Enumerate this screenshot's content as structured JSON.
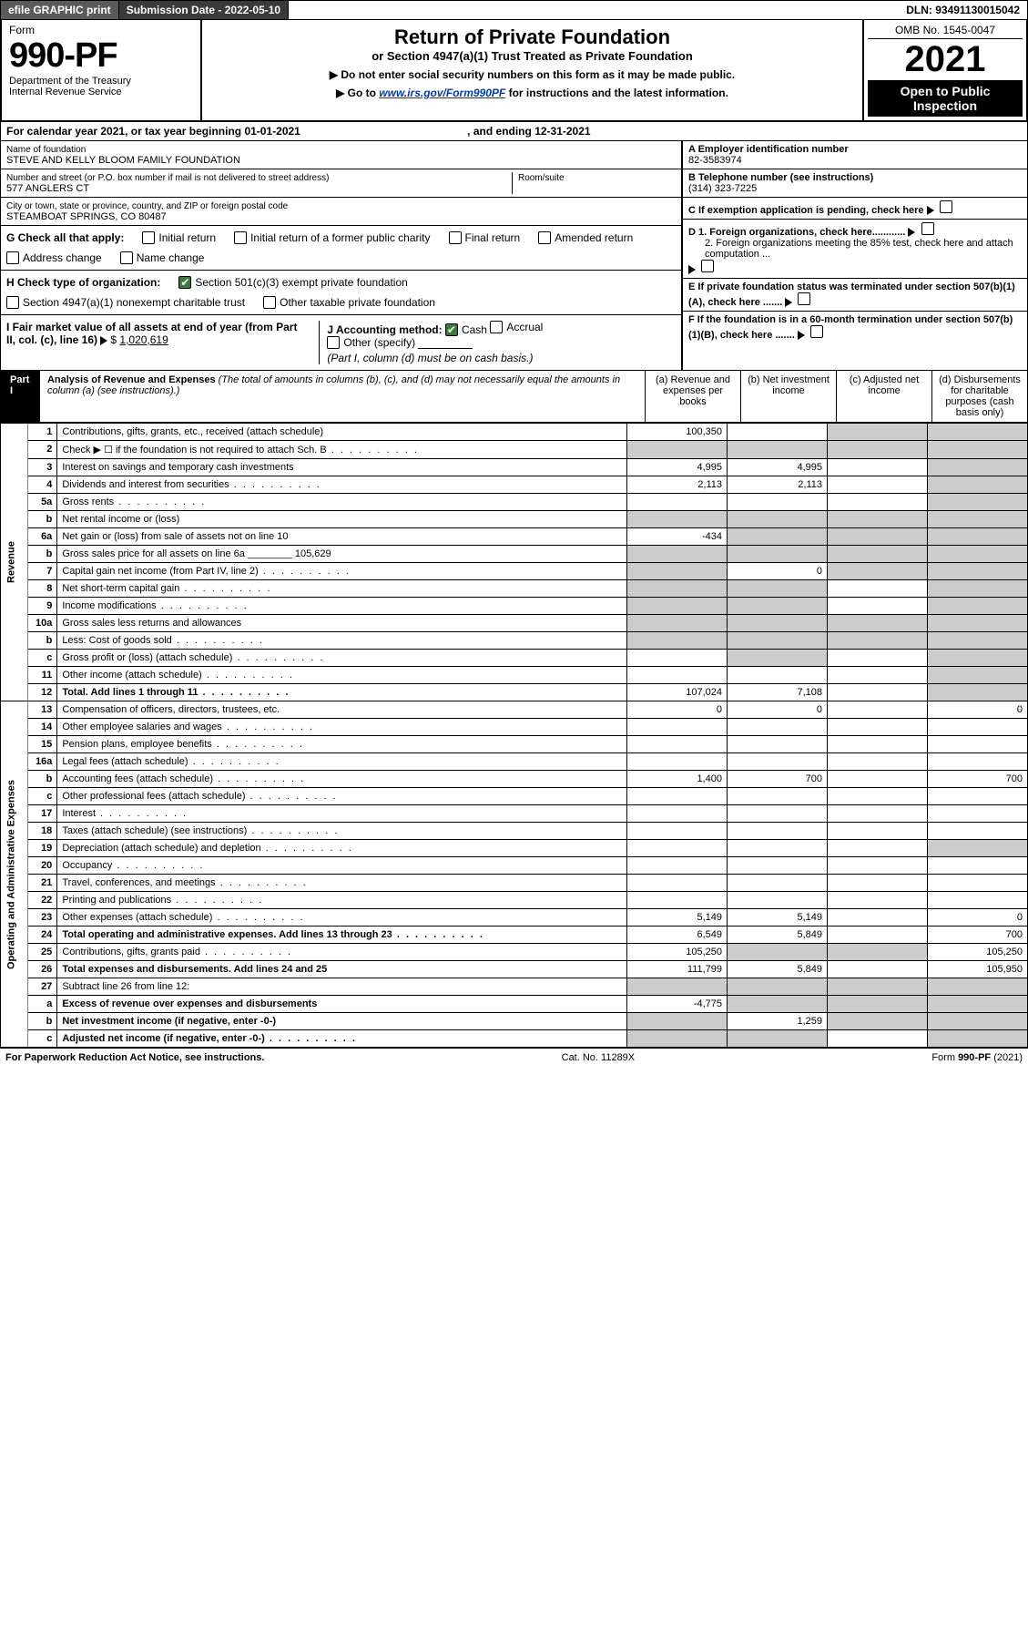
{
  "top": {
    "efile": "efile GRAPHIC print",
    "subdate_label": "Submission Date - ",
    "subdate": "2022-05-10",
    "dln_label": "DLN: ",
    "dln": "93491130015042"
  },
  "header": {
    "form_word": "Form",
    "form_num": "990-PF",
    "dept1": "Department of the Treasury",
    "dept2": "Internal Revenue Service",
    "title": "Return of Private Foundation",
    "subtitle": "or Section 4947(a)(1) Trust Treated as Private Foundation",
    "note1": "▶ Do not enter social security numbers on this form as it may be made public.",
    "note2_pre": "▶ Go to ",
    "note2_link": "www.irs.gov/Form990PF",
    "note2_post": " for instructions and the latest information.",
    "omb": "OMB No. 1545-0047",
    "year": "2021",
    "open": "Open to Public Inspection"
  },
  "cal": {
    "pre": "For calendar year 2021, or tax year beginning ",
    "begin": "01-01-2021",
    "mid": " , and ending ",
    "end": "12-31-2021"
  },
  "name": {
    "label": "Name of foundation",
    "value": "STEVE AND KELLY BLOOM FAMILY FOUNDATION"
  },
  "addr": {
    "label": "Number and street (or P.O. box number if mail is not delivered to street address)",
    "value": "577 ANGLERS CT",
    "room_label": "Room/suite"
  },
  "city": {
    "label": "City or town, state or province, country, and ZIP or foreign postal code",
    "value": "STEAMBOAT SPRINGS, CO  80487"
  },
  "ein": {
    "label": "A Employer identification number",
    "value": "82-3583974"
  },
  "tel": {
    "label": "B Telephone number (see instructions)",
    "value": "(314) 323-7225"
  },
  "C": "C If exemption application is pending, check here",
  "D1": "D 1. Foreign organizations, check here............",
  "D2": "2. Foreign organizations meeting the 85% test, check here and attach computation ...",
  "E": "E  If private foundation status was terminated under section 507(b)(1)(A), check here .......",
  "F": "F  If the foundation is in a 60-month termination under section 507(b)(1)(B), check here .......",
  "G": {
    "label": "G Check all that apply:",
    "opts": [
      "Initial return",
      "Initial return of a former public charity",
      "Final return",
      "Amended return",
      "Address change",
      "Name change"
    ]
  },
  "H": {
    "label": "H Check type of organization:",
    "o1": "Section 501(c)(3) exempt private foundation",
    "o2": "Section 4947(a)(1) nonexempt charitable trust",
    "o3": "Other taxable private foundation"
  },
  "I": {
    "label": "I Fair market value of all assets at end of year (from Part II, col. (c), line 16)",
    "value": "1,020,619"
  },
  "J": {
    "label": "J Accounting method:",
    "cash": "Cash",
    "accrual": "Accrual",
    "other": "Other (specify)",
    "note": "(Part I, column (d) must be on cash basis.)"
  },
  "part1_title": "Part I",
  "part1_desc": "Analysis of Revenue and Expenses (The total of amounts in columns (b), (c), and (d) may not necessarily equal the amounts in column (a) (see instructions).)",
  "cols": {
    "a": "(a)  Revenue and expenses per books",
    "b": "(b)  Net investment income",
    "c": "(c)  Adjusted net income",
    "d": "(d)  Disbursements for charitable purposes (cash basis only)"
  },
  "vlabels": {
    "rev": "Revenue",
    "exp": "Operating and Administrative Expenses"
  },
  "rows": [
    {
      "n": "1",
      "d": "Contributions, gifts, grants, etc., received (attach schedule)",
      "a": "100,350",
      "b": "",
      "c": "shade",
      "dd": "shade"
    },
    {
      "n": "2",
      "d": "Check ▶ ☐ if the foundation is not required to attach Sch. B",
      "a": "shade",
      "b": "shade",
      "c": "shade",
      "dd": "shade",
      "dots": true
    },
    {
      "n": "3",
      "d": "Interest on savings and temporary cash investments",
      "a": "4,995",
      "b": "4,995",
      "c": "",
      "dd": "shade"
    },
    {
      "n": "4",
      "d": "Dividends and interest from securities",
      "a": "2,113",
      "b": "2,113",
      "c": "",
      "dd": "shade",
      "dots": true
    },
    {
      "n": "5a",
      "d": "Gross rents",
      "a": "",
      "b": "",
      "c": "",
      "dd": "shade",
      "dots": true
    },
    {
      "n": "b",
      "d": "Net rental income or (loss)",
      "a": "shade",
      "b": "shade",
      "c": "shade",
      "dd": "shade"
    },
    {
      "n": "6a",
      "d": "Net gain or (loss) from sale of assets not on line 10",
      "a": "-434",
      "b": "shade",
      "c": "shade",
      "dd": "shade"
    },
    {
      "n": "b",
      "d": "Gross sales price for all assets on line 6a ________ 105,629",
      "a": "shade",
      "b": "shade",
      "c": "shade",
      "dd": "shade"
    },
    {
      "n": "7",
      "d": "Capital gain net income (from Part IV, line 2)",
      "a": "shade",
      "b": "0",
      "c": "shade",
      "dd": "shade",
      "dots": true
    },
    {
      "n": "8",
      "d": "Net short-term capital gain",
      "a": "shade",
      "b": "shade",
      "c": "",
      "dd": "shade",
      "dots": true
    },
    {
      "n": "9",
      "d": "Income modifications",
      "a": "shade",
      "b": "shade",
      "c": "",
      "dd": "shade",
      "dots": true
    },
    {
      "n": "10a",
      "d": "Gross sales less returns and allowances",
      "a": "shade",
      "b": "shade",
      "c": "shade",
      "dd": "shade"
    },
    {
      "n": "b",
      "d": "Less: Cost of goods sold",
      "a": "shade",
      "b": "shade",
      "c": "shade",
      "dd": "shade",
      "dots": true
    },
    {
      "n": "c",
      "d": "Gross profit or (loss) (attach schedule)",
      "a": "",
      "b": "shade",
      "c": "",
      "dd": "shade",
      "dots": true
    },
    {
      "n": "11",
      "d": "Other income (attach schedule)",
      "a": "",
      "b": "",
      "c": "",
      "dd": "shade",
      "dots": true
    },
    {
      "n": "12",
      "d": "Total. Add lines 1 through 11",
      "a": "107,024",
      "b": "7,108",
      "c": "",
      "dd": "shade",
      "dots": true,
      "bold": true
    },
    {
      "n": "13",
      "d": "Compensation of officers, directors, trustees, etc.",
      "a": "0",
      "b": "0",
      "c": "",
      "dd": "0"
    },
    {
      "n": "14",
      "d": "Other employee salaries and wages",
      "a": "",
      "b": "",
      "c": "",
      "dd": "",
      "dots": true
    },
    {
      "n": "15",
      "d": "Pension plans, employee benefits",
      "a": "",
      "b": "",
      "c": "",
      "dd": "",
      "dots": true
    },
    {
      "n": "16a",
      "d": "Legal fees (attach schedule)",
      "a": "",
      "b": "",
      "c": "",
      "dd": "",
      "dots": true
    },
    {
      "n": "b",
      "d": "Accounting fees (attach schedule)",
      "a": "1,400",
      "b": "700",
      "c": "",
      "dd": "700",
      "dots": true
    },
    {
      "n": "c",
      "d": "Other professional fees (attach schedule)",
      "a": "",
      "b": "",
      "c": "",
      "dd": "",
      "dots": true
    },
    {
      "n": "17",
      "d": "Interest",
      "a": "",
      "b": "",
      "c": "",
      "dd": "",
      "dots": true
    },
    {
      "n": "18",
      "d": "Taxes (attach schedule) (see instructions)",
      "a": "",
      "b": "",
      "c": "",
      "dd": "",
      "dots": true
    },
    {
      "n": "19",
      "d": "Depreciation (attach schedule) and depletion",
      "a": "",
      "b": "",
      "c": "",
      "dd": "shade",
      "dots": true
    },
    {
      "n": "20",
      "d": "Occupancy",
      "a": "",
      "b": "",
      "c": "",
      "dd": "",
      "dots": true
    },
    {
      "n": "21",
      "d": "Travel, conferences, and meetings",
      "a": "",
      "b": "",
      "c": "",
      "dd": "",
      "dots": true
    },
    {
      "n": "22",
      "d": "Printing and publications",
      "a": "",
      "b": "",
      "c": "",
      "dd": "",
      "dots": true
    },
    {
      "n": "23",
      "d": "Other expenses (attach schedule)",
      "a": "5,149",
      "b": "5,149",
      "c": "",
      "dd": "0",
      "dots": true
    },
    {
      "n": "24",
      "d": "Total operating and administrative expenses. Add lines 13 through 23",
      "a": "6,549",
      "b": "5,849",
      "c": "",
      "dd": "700",
      "dots": true,
      "bold": true
    },
    {
      "n": "25",
      "d": "Contributions, gifts, grants paid",
      "a": "105,250",
      "b": "shade",
      "c": "shade",
      "dd": "105,250",
      "dots": true
    },
    {
      "n": "26",
      "d": "Total expenses and disbursements. Add lines 24 and 25",
      "a": "111,799",
      "b": "5,849",
      "c": "",
      "dd": "105,950",
      "bold": true
    },
    {
      "n": "27",
      "d": "Subtract line 26 from line 12:",
      "a": "shade",
      "b": "shade",
      "c": "shade",
      "dd": "shade"
    },
    {
      "n": "a",
      "d": "Excess of revenue over expenses and disbursements",
      "a": "-4,775",
      "b": "shade",
      "c": "shade",
      "dd": "shade",
      "bold": true
    },
    {
      "n": "b",
      "d": "Net investment income (if negative, enter -0-)",
      "a": "shade",
      "b": "1,259",
      "c": "shade",
      "dd": "shade",
      "bold": true
    },
    {
      "n": "c",
      "d": "Adjusted net income (if negative, enter -0-)",
      "a": "shade",
      "b": "shade",
      "c": "",
      "dd": "shade",
      "bold": true,
      "dots": true
    }
  ],
  "footer": {
    "left": "For Paperwork Reduction Act Notice, see instructions.",
    "mid": "Cat. No. 11289X",
    "right": "Form 990-PF (2021)"
  }
}
